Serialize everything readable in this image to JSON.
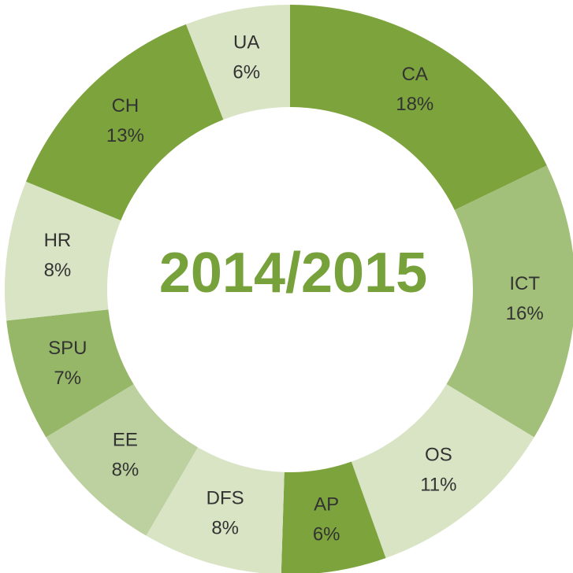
{
  "chart_data": {
    "type": "donut",
    "title": "2014/2015",
    "categories": [
      "CA",
      "ICT",
      "OS",
      "AP",
      "DFS",
      "EE",
      "SPU",
      "HR",
      "CH",
      "UA"
    ],
    "values": [
      18,
      16,
      11,
      6,
      8,
      8,
      7,
      8,
      13,
      6
    ],
    "value_labels": [
      "18%",
      "16%",
      "11%",
      "6%",
      "8%",
      "8%",
      "7%",
      "8%",
      "13%",
      "6%"
    ],
    "colors": [
      "#7ca33c",
      "#a3c07a",
      "#d8e4c4",
      "#7ca33c",
      "#d8e4c4",
      "#bdd0a0",
      "#96b767",
      "#d8e4c4",
      "#7ca33c",
      "#d8e4c4"
    ]
  }
}
